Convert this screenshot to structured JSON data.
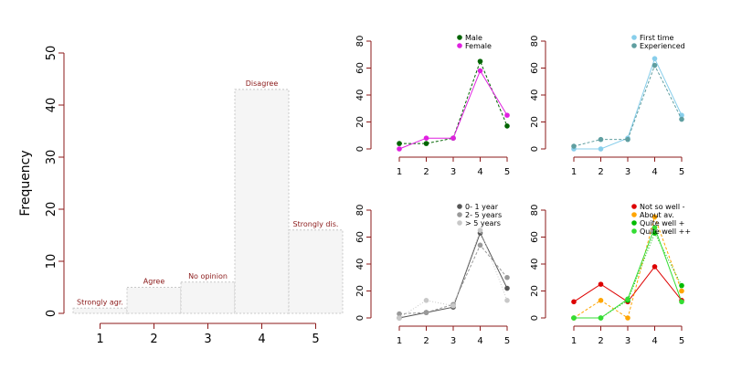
{
  "chart_data": [
    {
      "type": "bar",
      "panel": "main",
      "ylabel": "Frequency",
      "categories": [
        "1",
        "2",
        "3",
        "4",
        "5"
      ],
      "bar_labels": [
        "Strongly agr.",
        "Agree",
        "No opinion",
        "Disagree",
        "Strongly dis."
      ],
      "values": [
        1,
        5,
        6,
        43,
        16
      ],
      "yticks": [
        0,
        10,
        20,
        30,
        40,
        50
      ],
      "ylim": [
        0,
        50
      ],
      "grid": false,
      "colors": {
        "bar_fill": "#f5f5f5",
        "bar_border": "#c8c8c8",
        "axis": "#8b1a1a",
        "label": "#8b1a1a"
      }
    },
    {
      "type": "line",
      "panel": "top-middle",
      "x": [
        1,
        2,
        3,
        4,
        5
      ],
      "ylim": [
        0,
        80
      ],
      "yticks": [
        0,
        20,
        40,
        60,
        80
      ],
      "legend": "top-right",
      "series": [
        {
          "name": "Male",
          "values": [
            4,
            4,
            8,
            65,
            17
          ],
          "color": "#006400",
          "dash": "3 2"
        },
        {
          "name": "Female",
          "values": [
            0,
            8,
            8,
            58,
            25
          ],
          "color": "#e020e0",
          "dash": ""
        }
      ]
    },
    {
      "type": "line",
      "panel": "top-right",
      "x": [
        1,
        2,
        3,
        4,
        5
      ],
      "ylim": [
        0,
        80
      ],
      "yticks": [
        0,
        20,
        40,
        60,
        80
      ],
      "legend": "top-right",
      "series": [
        {
          "name": "First time",
          "values": [
            0,
            0,
            8,
            67,
            25
          ],
          "color": "#87ceeb",
          "dash": ""
        },
        {
          "name": "Experienced",
          "values": [
            2,
            7,
            7,
            62,
            22
          ],
          "color": "#5f9ea0",
          "dash": "3 2"
        }
      ]
    },
    {
      "type": "line",
      "panel": "bottom-middle",
      "x": [
        1,
        2,
        3,
        4,
        5
      ],
      "ylim": [
        0,
        80
      ],
      "yticks": [
        0,
        20,
        40,
        60,
        80
      ],
      "legend": "top-right",
      "series": [
        {
          "name": "0- 1 year",
          "values": [
            0,
            4,
            8,
            63,
            22
          ],
          "color": "#555555",
          "dash": ""
        },
        {
          "name": "2- 5 years",
          "values": [
            3,
            4,
            10,
            54,
            30
          ],
          "color": "#999999",
          "dash": "3 2"
        },
        {
          "name": "> 5 years",
          "values": [
            0,
            13,
            9,
            65,
            13
          ],
          "color": "#c8c8c8",
          "dash": "1 2"
        }
      ]
    },
    {
      "type": "line",
      "panel": "bottom-right",
      "x": [
        1,
        2,
        3,
        4,
        5
      ],
      "ylim": [
        0,
        80
      ],
      "yticks": [
        0,
        20,
        40,
        60,
        80
      ],
      "legend": "top-right",
      "series": [
        {
          "name": "Not so well -",
          "values": [
            12,
            25,
            12,
            38,
            13
          ],
          "color": "#dd0000",
          "dash": ""
        },
        {
          "name": "About av.",
          "values": [
            0,
            13,
            0,
            75,
            20
          ],
          "color": "#ffa500",
          "dash": "3 2"
        },
        {
          "name": "Quite well +",
          "values": [
            0,
            0,
            13,
            63,
            24
          ],
          "color": "#00bb00",
          "dash": "1 2"
        },
        {
          "name": "Quite well ++",
          "values": [
            0,
            0,
            14,
            67,
            12
          ],
          "color": "#33dd33",
          "dash": ""
        }
      ]
    }
  ]
}
